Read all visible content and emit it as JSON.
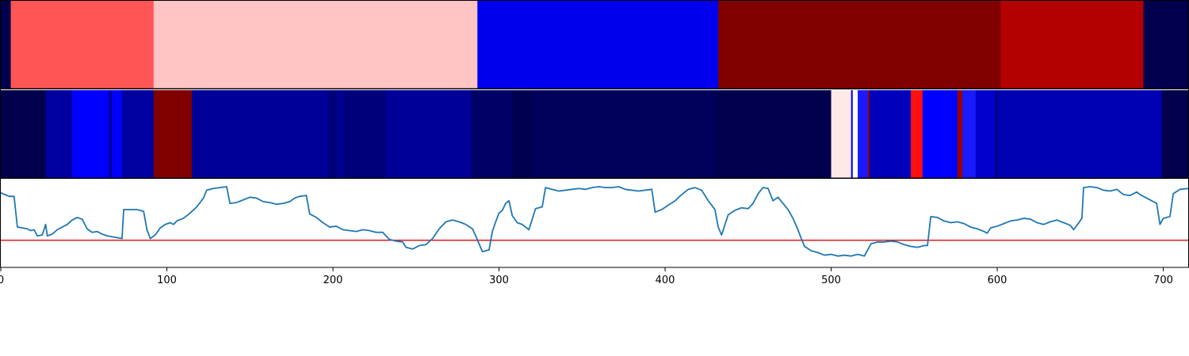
{
  "chart_data": [
    {
      "type": "heatmap",
      "panel": "top-band",
      "xlim": [
        0,
        715
      ],
      "segments": [
        {
          "start": 0,
          "end": 6,
          "color": "#00004d"
        },
        {
          "start": 6,
          "end": 92,
          "color": "#ff5555"
        },
        {
          "start": 92,
          "end": 287,
          "color": "#ffc4c4"
        },
        {
          "start": 287,
          "end": 432,
          "color": "#0000ee"
        },
        {
          "start": 432,
          "end": 602,
          "color": "#800000"
        },
        {
          "start": 602,
          "end": 688,
          "color": "#b30000"
        },
        {
          "start": 688,
          "end": 715,
          "color": "#00004d"
        }
      ]
    },
    {
      "type": "heatmap",
      "panel": "middle-band",
      "xlim": [
        0,
        715
      ],
      "segments": [
        {
          "start": 0,
          "end": 27,
          "color": "#00004d"
        },
        {
          "start": 27,
          "end": 43,
          "color": "#0000a0"
        },
        {
          "start": 43,
          "end": 65,
          "color": "#0000ff"
        },
        {
          "start": 65,
          "end": 67,
          "color": "#0000a0"
        },
        {
          "start": 67,
          "end": 73,
          "color": "#0000ff"
        },
        {
          "start": 73,
          "end": 92,
          "color": "#0000a0"
        },
        {
          "start": 92,
          "end": 115,
          "color": "#800000"
        },
        {
          "start": 115,
          "end": 197,
          "color": "#000099"
        },
        {
          "start": 197,
          "end": 202,
          "color": "#00007a"
        },
        {
          "start": 202,
          "end": 207,
          "color": "#000090"
        },
        {
          "start": 207,
          "end": 232,
          "color": "#00007a"
        },
        {
          "start": 232,
          "end": 283,
          "color": "#000099"
        },
        {
          "start": 283,
          "end": 308,
          "color": "#000066"
        },
        {
          "start": 308,
          "end": 320,
          "color": "#000050"
        },
        {
          "start": 320,
          "end": 430,
          "color": "#00005c"
        },
        {
          "start": 430,
          "end": 500,
          "color": "#00004d"
        },
        {
          "start": 500,
          "end": 512,
          "color": "#ffe8e8"
        },
        {
          "start": 512,
          "end": 513,
          "color": "#0000ff"
        },
        {
          "start": 513,
          "end": 516,
          "color": "#ffffff"
        },
        {
          "start": 516,
          "end": 522,
          "color": "#1a1aff"
        },
        {
          "start": 522,
          "end": 523,
          "color": "#990000"
        },
        {
          "start": 523,
          "end": 548,
          "color": "#0000bb"
        },
        {
          "start": 548,
          "end": 555,
          "color": "#ff1010"
        },
        {
          "start": 555,
          "end": 576,
          "color": "#0000ff"
        },
        {
          "start": 576,
          "end": 579,
          "color": "#990000"
        },
        {
          "start": 579,
          "end": 587,
          "color": "#1a1aff"
        },
        {
          "start": 587,
          "end": 599,
          "color": "#0000cc"
        },
        {
          "start": 599,
          "end": 600,
          "color": "#000066"
        },
        {
          "start": 600,
          "end": 699,
          "color": "#0000b3"
        },
        {
          "start": 699,
          "end": 715,
          "color": "#00004d"
        }
      ]
    },
    {
      "type": "line",
      "panel": "line-plot",
      "xlim": [
        0,
        715
      ],
      "ylim": [
        0,
        1
      ],
      "x_ticks": [
        0,
        100,
        200,
        300,
        400,
        500,
        600,
        700
      ],
      "x_tick_labels": [
        "0",
        "100",
        "200",
        "300",
        "400",
        "500",
        "600",
        "700"
      ],
      "threshold": 0.3,
      "threshold_color": "#d62728",
      "line_color": "#1f77b4",
      "points": [
        [
          0,
          0.84
        ],
        [
          5,
          0.8
        ],
        [
          8,
          0.8
        ],
        [
          10,
          0.45
        ],
        [
          16,
          0.43
        ],
        [
          18,
          0.41
        ],
        [
          20,
          0.42
        ],
        [
          22,
          0.35
        ],
        [
          25,
          0.36
        ],
        [
          27,
          0.48
        ],
        [
          28,
          0.35
        ],
        [
          31,
          0.37
        ],
        [
          34,
          0.42
        ],
        [
          37,
          0.45
        ],
        [
          40,
          0.48
        ],
        [
          43,
          0.53
        ],
        [
          46,
          0.56
        ],
        [
          49,
          0.54
        ],
        [
          52,
          0.43
        ],
        [
          55,
          0.39
        ],
        [
          58,
          0.4
        ],
        [
          61,
          0.37
        ],
        [
          64,
          0.35
        ],
        [
          67,
          0.34
        ],
        [
          70,
          0.33
        ],
        [
          73,
          0.32
        ],
        [
          74,
          0.65
        ],
        [
          78,
          0.65
        ],
        [
          82,
          0.65
        ],
        [
          86,
          0.63
        ],
        [
          88,
          0.42
        ],
        [
          90,
          0.32
        ],
        [
          93,
          0.36
        ],
        [
          96,
          0.44
        ],
        [
          99,
          0.48
        ],
        [
          102,
          0.5
        ],
        [
          104,
          0.48
        ],
        [
          106,
          0.52
        ],
        [
          110,
          0.55
        ],
        [
          114,
          0.61
        ],
        [
          118,
          0.68
        ],
        [
          122,
          0.78
        ],
        [
          124,
          0.87
        ],
        [
          128,
          0.89
        ],
        [
          132,
          0.9
        ],
        [
          136,
          0.91
        ],
        [
          138,
          0.72
        ],
        [
          142,
          0.73
        ],
        [
          146,
          0.76
        ],
        [
          150,
          0.79
        ],
        [
          154,
          0.78
        ],
        [
          158,
          0.74
        ],
        [
          162,
          0.73
        ],
        [
          166,
          0.71
        ],
        [
          170,
          0.72
        ],
        [
          174,
          0.74
        ],
        [
          177,
          0.78
        ],
        [
          180,
          0.8
        ],
        [
          184,
          0.81
        ],
        [
          186,
          0.6
        ],
        [
          190,
          0.56
        ],
        [
          194,
          0.5
        ],
        [
          198,
          0.45
        ],
        [
          202,
          0.46
        ],
        [
          206,
          0.42
        ],
        [
          210,
          0.41
        ],
        [
          214,
          0.4
        ],
        [
          218,
          0.42
        ],
        [
          222,
          0.41
        ],
        [
          226,
          0.39
        ],
        [
          230,
          0.39
        ],
        [
          234,
          0.31
        ],
        [
          238,
          0.29
        ],
        [
          242,
          0.28
        ],
        [
          244,
          0.22
        ],
        [
          248,
          0.2
        ],
        [
          252,
          0.24
        ],
        [
          256,
          0.25
        ],
        [
          260,
          0.32
        ],
        [
          264,
          0.43
        ],
        [
          268,
          0.51
        ],
        [
          272,
          0.53
        ],
        [
          276,
          0.51
        ],
        [
          280,
          0.48
        ],
        [
          284,
          0.43
        ],
        [
          286,
          0.35
        ],
        [
          290,
          0.17
        ],
        [
          294,
          0.19
        ],
        [
          296,
          0.4
        ],
        [
          298,
          0.51
        ],
        [
          300,
          0.61
        ],
        [
          302,
          0.64
        ],
        [
          304,
          0.72
        ],
        [
          306,
          0.75
        ],
        [
          308,
          0.58
        ],
        [
          311,
          0.5
        ],
        [
          314,
          0.48
        ],
        [
          318,
          0.42
        ],
        [
          322,
          0.66
        ],
        [
          326,
          0.68
        ],
        [
          328,
          0.9
        ],
        [
          332,
          0.88
        ],
        [
          336,
          0.86
        ],
        [
          340,
          0.87
        ],
        [
          344,
          0.88
        ],
        [
          348,
          0.89
        ],
        [
          352,
          0.88
        ],
        [
          356,
          0.9
        ],
        [
          360,
          0.91
        ],
        [
          364,
          0.9
        ],
        [
          368,
          0.9
        ],
        [
          372,
          0.91
        ],
        [
          376,
          0.88
        ],
        [
          380,
          0.87
        ],
        [
          384,
          0.86
        ],
        [
          388,
          0.87
        ],
        [
          392,
          0.88
        ],
        [
          394,
          0.62
        ],
        [
          398,
          0.65
        ],
        [
          402,
          0.7
        ],
        [
          406,
          0.75
        ],
        [
          410,
          0.82
        ],
        [
          414,
          0.88
        ],
        [
          418,
          0.9
        ],
        [
          422,
          0.87
        ],
        [
          426,
          0.75
        ],
        [
          430,
          0.65
        ],
        [
          432,
          0.45
        ],
        [
          434,
          0.36
        ],
        [
          438,
          0.59
        ],
        [
          442,
          0.64
        ],
        [
          446,
          0.67
        ],
        [
          450,
          0.66
        ],
        [
          453,
          0.72
        ],
        [
          456,
          0.83
        ],
        [
          459,
          0.9
        ],
        [
          462,
          0.89
        ],
        [
          465,
          0.75
        ],
        [
          468,
          0.79
        ],
        [
          471,
          0.72
        ],
        [
          474,
          0.65
        ],
        [
          477,
          0.55
        ],
        [
          480,
          0.42
        ],
        [
          482,
          0.32
        ],
        [
          484,
          0.23
        ],
        [
          488,
          0.18
        ],
        [
          492,
          0.16
        ],
        [
          496,
          0.13
        ],
        [
          500,
          0.14
        ],
        [
          504,
          0.12
        ],
        [
          508,
          0.13
        ],
        [
          512,
          0.12
        ],
        [
          516,
          0.14
        ],
        [
          520,
          0.12
        ],
        [
          524,
          0.26
        ],
        [
          528,
          0.28
        ],
        [
          532,
          0.28
        ],
        [
          536,
          0.29
        ],
        [
          540,
          0.28
        ],
        [
          544,
          0.25
        ],
        [
          548,
          0.23
        ],
        [
          552,
          0.22
        ],
        [
          556,
          0.24
        ],
        [
          558,
          0.24
        ],
        [
          560,
          0.57
        ],
        [
          564,
          0.56
        ],
        [
          568,
          0.52
        ],
        [
          572,
          0.5
        ],
        [
          576,
          0.51
        ],
        [
          580,
          0.49
        ],
        [
          584,
          0.45
        ],
        [
          588,
          0.43
        ],
        [
          592,
          0.4
        ],
        [
          594,
          0.38
        ],
        [
          596,
          0.44
        ],
        [
          600,
          0.46
        ],
        [
          604,
          0.49
        ],
        [
          608,
          0.52
        ],
        [
          612,
          0.53
        ],
        [
          616,
          0.55
        ],
        [
          620,
          0.54
        ],
        [
          624,
          0.5
        ],
        [
          628,
          0.48
        ],
        [
          632,
          0.51
        ],
        [
          636,
          0.53
        ],
        [
          640,
          0.5
        ],
        [
          644,
          0.47
        ],
        [
          646,
          0.42
        ],
        [
          648,
          0.47
        ],
        [
          651,
          0.55
        ],
        [
          652,
          0.9
        ],
        [
          656,
          0.91
        ],
        [
          660,
          0.9
        ],
        [
          664,
          0.87
        ],
        [
          668,
          0.86
        ],
        [
          672,
          0.88
        ],
        [
          676,
          0.82
        ],
        [
          680,
          0.81
        ],
        [
          684,
          0.85
        ],
        [
          686,
          0.82
        ],
        [
          690,
          0.78
        ],
        [
          696,
          0.72
        ],
        [
          698,
          0.48
        ],
        [
          700,
          0.55
        ],
        [
          704,
          0.57
        ],
        [
          706,
          0.83
        ],
        [
          710,
          0.88
        ],
        [
          715,
          0.89
        ]
      ]
    }
  ]
}
